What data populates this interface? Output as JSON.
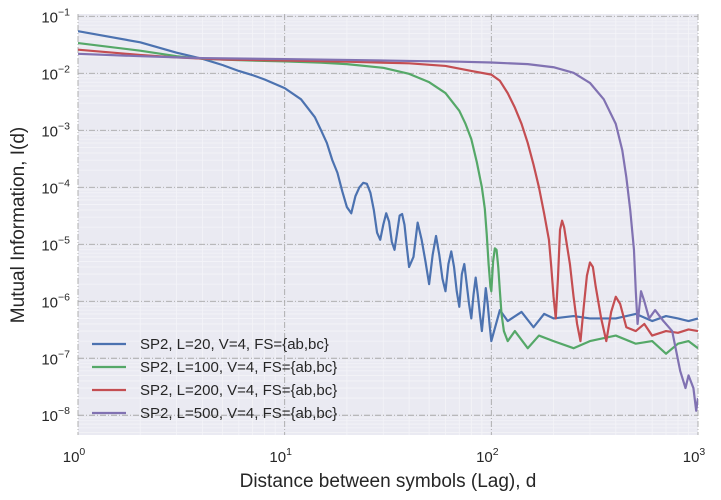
{
  "chart_data": {
    "type": "line",
    "title": "",
    "xlabel": "Distance between symbols (Lag), d",
    "ylabel": "Mutual Information, I(d)",
    "x_scale": "log",
    "y_scale": "log",
    "xlim": [
      1,
      1000
    ],
    "ylim": [
      4.5e-09,
      0.11
    ],
    "x_ticks": [
      {
        "value": 1,
        "base": "10",
        "exp": "0"
      },
      {
        "value": 10,
        "base": "10",
        "exp": "1"
      },
      {
        "value": 100,
        "base": "10",
        "exp": "2"
      },
      {
        "value": 1000,
        "base": "10",
        "exp": "3"
      }
    ],
    "y_ticks": [
      {
        "value": 1e-08,
        "base": "10",
        "exp": "−8"
      },
      {
        "value": 1e-07,
        "base": "10",
        "exp": "−7"
      },
      {
        "value": 1e-06,
        "base": "10",
        "exp": "−6"
      },
      {
        "value": 1e-05,
        "base": "10",
        "exp": "−5"
      },
      {
        "value": 0.0001,
        "base": "10",
        "exp": "−4"
      },
      {
        "value": 0.001,
        "base": "10",
        "exp": "−3"
      },
      {
        "value": 0.01,
        "base": "10",
        "exp": "−2"
      },
      {
        "value": 0.1,
        "base": "10",
        "exp": "−1"
      }
    ],
    "grid": true,
    "legend_position": "lower-left",
    "series": [
      {
        "name": "SP2, L=20, V=4, FS={ab,bc}",
        "color": "#4c72b0",
        "points": [
          [
            1,
            0.055
          ],
          [
            2,
            0.035
          ],
          [
            3,
            0.023
          ],
          [
            4,
            0.018
          ],
          [
            5,
            0.014
          ],
          [
            6,
            0.011
          ],
          [
            7,
            0.0093
          ],
          [
            8,
            0.0078
          ],
          [
            10,
            0.0055
          ],
          [
            12,
            0.0035
          ],
          [
            14,
            0.0017
          ],
          [
            15,
            0.001
          ],
          [
            16,
            0.0006
          ],
          [
            17,
            0.0003
          ],
          [
            18,
            0.00018
          ],
          [
            19,
            8.5e-05
          ],
          [
            20,
            4.5e-05
          ],
          [
            21,
            3.5e-05
          ],
          [
            22,
            7e-05
          ],
          [
            23,
            0.0001
          ],
          [
            24,
            0.00012
          ],
          [
            25,
            0.000115
          ],
          [
            26,
            8e-05
          ],
          [
            27,
            4e-05
          ],
          [
            28,
            1.6e-05
          ],
          [
            29,
            1.2e-05
          ],
          [
            30,
            2.2e-05
          ],
          [
            31,
            3.5e-05
          ],
          [
            32,
            2.5e-05
          ],
          [
            33,
            1.1e-05
          ],
          [
            34,
            8e-06
          ],
          [
            35,
            1.6e-05
          ],
          [
            36,
            3.2e-05
          ],
          [
            37,
            3.4e-05
          ],
          [
            38,
            2.2e-05
          ],
          [
            39,
            9e-06
          ],
          [
            40,
            4e-06
          ],
          [
            42,
            6e-06
          ],
          [
            44,
            2.4e-05
          ],
          [
            46,
            1.2e-05
          ],
          [
            48,
            5e-06
          ],
          [
            50,
            2e-06
          ],
          [
            52,
            6.5e-06
          ],
          [
            54,
            1.4e-05
          ],
          [
            56,
            6.5e-06
          ],
          [
            58,
            2.5e-06
          ],
          [
            60,
            1.5e-06
          ],
          [
            62,
            4.5e-06
          ],
          [
            64,
            7.5e-06
          ],
          [
            66,
            4e-06
          ],
          [
            68,
            1.5e-06
          ],
          [
            70,
            8e-07
          ],
          [
            72,
            3e-06
          ],
          [
            74,
            4.5e-06
          ],
          [
            76,
            2e-06
          ],
          [
            78,
            9e-07
          ],
          [
            80,
            5e-07
          ],
          [
            82,
            1.3e-06
          ],
          [
            84,
            2.6e-06
          ],
          [
            86,
            1.3e-06
          ],
          [
            88,
            6e-07
          ],
          [
            90,
            3e-07
          ],
          [
            92,
            7e-07
          ],
          [
            94,
            1.7e-06
          ],
          [
            96,
            9e-07
          ],
          [
            98,
            4e-07
          ],
          [
            100,
            2e-07
          ],
          [
            110,
            7e-07
          ],
          [
            120,
            4.5e-07
          ],
          [
            140,
            6.5e-07
          ],
          [
            160,
            3.5e-07
          ],
          [
            180,
            6e-07
          ],
          [
            200,
            5e-07
          ],
          [
            250,
            5.5e-07
          ],
          [
            300,
            5e-07
          ],
          [
            400,
            5e-07
          ],
          [
            500,
            6e-07
          ],
          [
            600,
            4.5e-07
          ],
          [
            700,
            5.5e-07
          ],
          [
            800,
            5e-07
          ],
          [
            900,
            4.5e-07
          ],
          [
            1000,
            5e-07
          ]
        ]
      },
      {
        "name": "SP2, L=100, V=4, FS={ab,bc}",
        "color": "#55a868",
        "points": [
          [
            1,
            0.034
          ],
          [
            2,
            0.025
          ],
          [
            3,
            0.02
          ],
          [
            4,
            0.018
          ],
          [
            6,
            0.017
          ],
          [
            10,
            0.0162
          ],
          [
            15,
            0.0154
          ],
          [
            20,
            0.0145
          ],
          [
            30,
            0.0125
          ],
          [
            40,
            0.0098
          ],
          [
            50,
            0.007
          ],
          [
            60,
            0.0045
          ],
          [
            70,
            0.0022
          ],
          [
            75,
            0.0013
          ],
          [
            80,
            0.0007
          ],
          [
            85,
            0.00028
          ],
          [
            90,
            0.0001
          ],
          [
            93,
            4.2e-05
          ],
          [
            95,
            1.5e-05
          ],
          [
            97,
            4.5e-06
          ],
          [
            99,
            1.8e-06
          ],
          [
            100,
            1.5e-06
          ],
          [
            102,
            5e-06
          ],
          [
            104,
            8.5e-06
          ],
          [
            106,
            8e-06
          ],
          [
            108,
            4e-06
          ],
          [
            110,
            1.5e-06
          ],
          [
            112,
            6e-07
          ],
          [
            115,
            3e-07
          ],
          [
            120,
            2e-07
          ],
          [
            130,
            3e-07
          ],
          [
            150,
            1.5e-07
          ],
          [
            170,
            2.5e-07
          ],
          [
            200,
            2e-07
          ],
          [
            250,
            1.5e-07
          ],
          [
            300,
            2e-07
          ],
          [
            400,
            2.5e-07
          ],
          [
            500,
            1.8e-07
          ],
          [
            600,
            2e-07
          ],
          [
            700,
            1.2e-07
          ],
          [
            800,
            1.8e-07
          ],
          [
            900,
            2e-07
          ],
          [
            1000,
            1.5e-07
          ]
        ]
      },
      {
        "name": "SP2, L=200, V=4, FS={ab,bc}",
        "color": "#c44e52",
        "points": [
          [
            1,
            0.026
          ],
          [
            2,
            0.021
          ],
          [
            3,
            0.019
          ],
          [
            5,
            0.0175
          ],
          [
            10,
            0.0168
          ],
          [
            20,
            0.016
          ],
          [
            40,
            0.015
          ],
          [
            60,
            0.0135
          ],
          [
            80,
            0.011
          ],
          [
            100,
            0.0095
          ],
          [
            110,
            0.0074
          ],
          [
            120,
            0.0045
          ],
          [
            130,
            0.0025
          ],
          [
            140,
            0.0013
          ],
          [
            150,
            0.0006
          ],
          [
            160,
            0.00025
          ],
          [
            170,
            0.0001
          ],
          [
            180,
            3.5e-05
          ],
          [
            190,
            1.2e-05
          ],
          [
            195,
            4e-06
          ],
          [
            200,
            1.2e-06
          ],
          [
            205,
            5e-07
          ],
          [
            210,
            2.5e-06
          ],
          [
            215,
            1.8e-05
          ],
          [
            220,
            2.6e-05
          ],
          [
            225,
            2e-05
          ],
          [
            230,
            1.2e-05
          ],
          [
            240,
            4.5e-06
          ],
          [
            250,
            1.2e-06
          ],
          [
            260,
            4e-07
          ],
          [
            270,
            2e-07
          ],
          [
            280,
            8e-07
          ],
          [
            290,
            2.8e-06
          ],
          [
            300,
            4.8e-06
          ],
          [
            310,
            4e-06
          ],
          [
            320,
            1.8e-06
          ],
          [
            340,
            5e-07
          ],
          [
            360,
            2e-07
          ],
          [
            380,
            6.5e-07
          ],
          [
            400,
            1.2e-06
          ],
          [
            420,
            9e-07
          ],
          [
            450,
            3.5e-07
          ],
          [
            500,
            3e-07
          ],
          [
            550,
            4e-07
          ],
          [
            600,
            2.5e-07
          ],
          [
            700,
            3e-07
          ],
          [
            800,
            2.8e-07
          ],
          [
            900,
            3.2e-07
          ],
          [
            1000,
            3e-07
          ]
        ]
      },
      {
        "name": "SP2, L=500, V=4, FS={ab,bc}",
        "color": "#8172b2",
        "points": [
          [
            1,
            0.022
          ],
          [
            2,
            0.02
          ],
          [
            4,
            0.0185
          ],
          [
            10,
            0.0178
          ],
          [
            20,
            0.0172
          ],
          [
            40,
            0.0165
          ],
          [
            70,
            0.016
          ],
          [
            100,
            0.0155
          ],
          [
            150,
            0.0145
          ],
          [
            200,
            0.0128
          ],
          [
            250,
            0.0102
          ],
          [
            300,
            0.0068
          ],
          [
            350,
            0.0035
          ],
          [
            400,
            0.0013
          ],
          [
            430,
            0.00045
          ],
          [
            450,
            0.00015
          ],
          [
            470,
            4e-05
          ],
          [
            490,
            8e-06
          ],
          [
            500,
            1.5e-06
          ],
          [
            510,
            4e-07
          ],
          [
            530,
            1.5e-06
          ],
          [
            550,
            1e-06
          ],
          [
            580,
            5e-07
          ],
          [
            620,
            7e-07
          ],
          [
            680,
            4.5e-07
          ],
          [
            750,
            3e-07
          ],
          [
            820,
            6e-08
          ],
          [
            870,
            3e-08
          ],
          [
            900,
            5e-08
          ],
          [
            950,
            3e-08
          ],
          [
            980,
            1.2e-08
          ],
          [
            1000,
            2e-08
          ]
        ]
      }
    ]
  }
}
